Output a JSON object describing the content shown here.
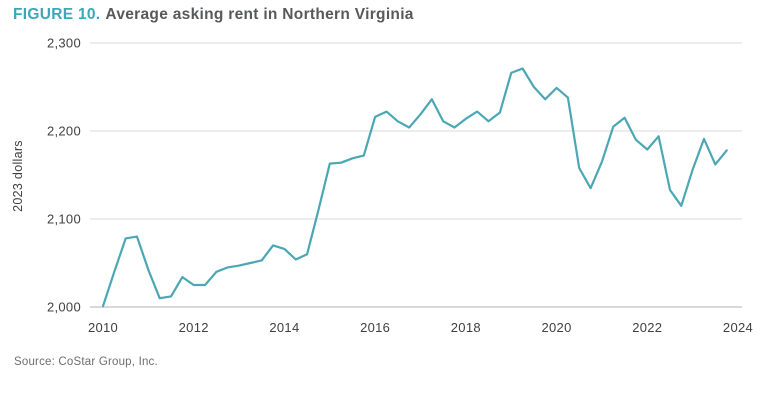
{
  "figure": {
    "label": "FIGURE 10.",
    "title": "Average asking rent in Northern Virginia"
  },
  "source": "Source: CoStar Group, Inc.",
  "colors": {
    "accent_teal": "#3ba7b9",
    "line": "#4ba7b3",
    "title_text": "#58595b",
    "axis_text": "#414042",
    "gridline": "#e6e7e8",
    "baseline": "#d8d9da",
    "source_text": "#6d6e71"
  },
  "chart_data": {
    "type": "line",
    "title": "Average asking rent in Northern Virginia",
    "xlabel": "",
    "ylabel": "2023 dollars",
    "grid": true,
    "legend": "none",
    "xlim": [
      2009.7,
      2024.1
    ],
    "ylim": [
      2000,
      2300
    ],
    "y_ticks": [
      2000,
      2100,
      2200,
      2300
    ],
    "x_ticks": [
      2010,
      2012,
      2014,
      2016,
      2018,
      2020,
      2022,
      2024
    ],
    "series": [
      {
        "name": "Average asking rent (2023 dollars)",
        "frequency": "quarterly",
        "start_year": 2010,
        "start_quarter": 1,
        "end_year": 2023,
        "end_quarter": 4,
        "values": [
          2001,
          2040,
          2078,
          2080,
          2042,
          2010,
          2012,
          2034,
          2025,
          2025,
          2040,
          2045,
          2047,
          2050,
          2053,
          2070,
          2066,
          2054,
          2060,
          2110,
          2163,
          2164,
          2169,
          2172,
          2216,
          2222,
          2211,
          2204,
          2219,
          2236,
          2211,
          2204,
          2214,
          2222,
          2211,
          2221,
          2266,
          2271,
          2250,
          2236,
          2249,
          2238,
          2158,
          2135,
          2165,
          2205,
          2215,
          2190,
          2179,
          2194,
          2133,
          2115,
          2156,
          2191,
          2162,
          2178
        ]
      }
    ]
  }
}
